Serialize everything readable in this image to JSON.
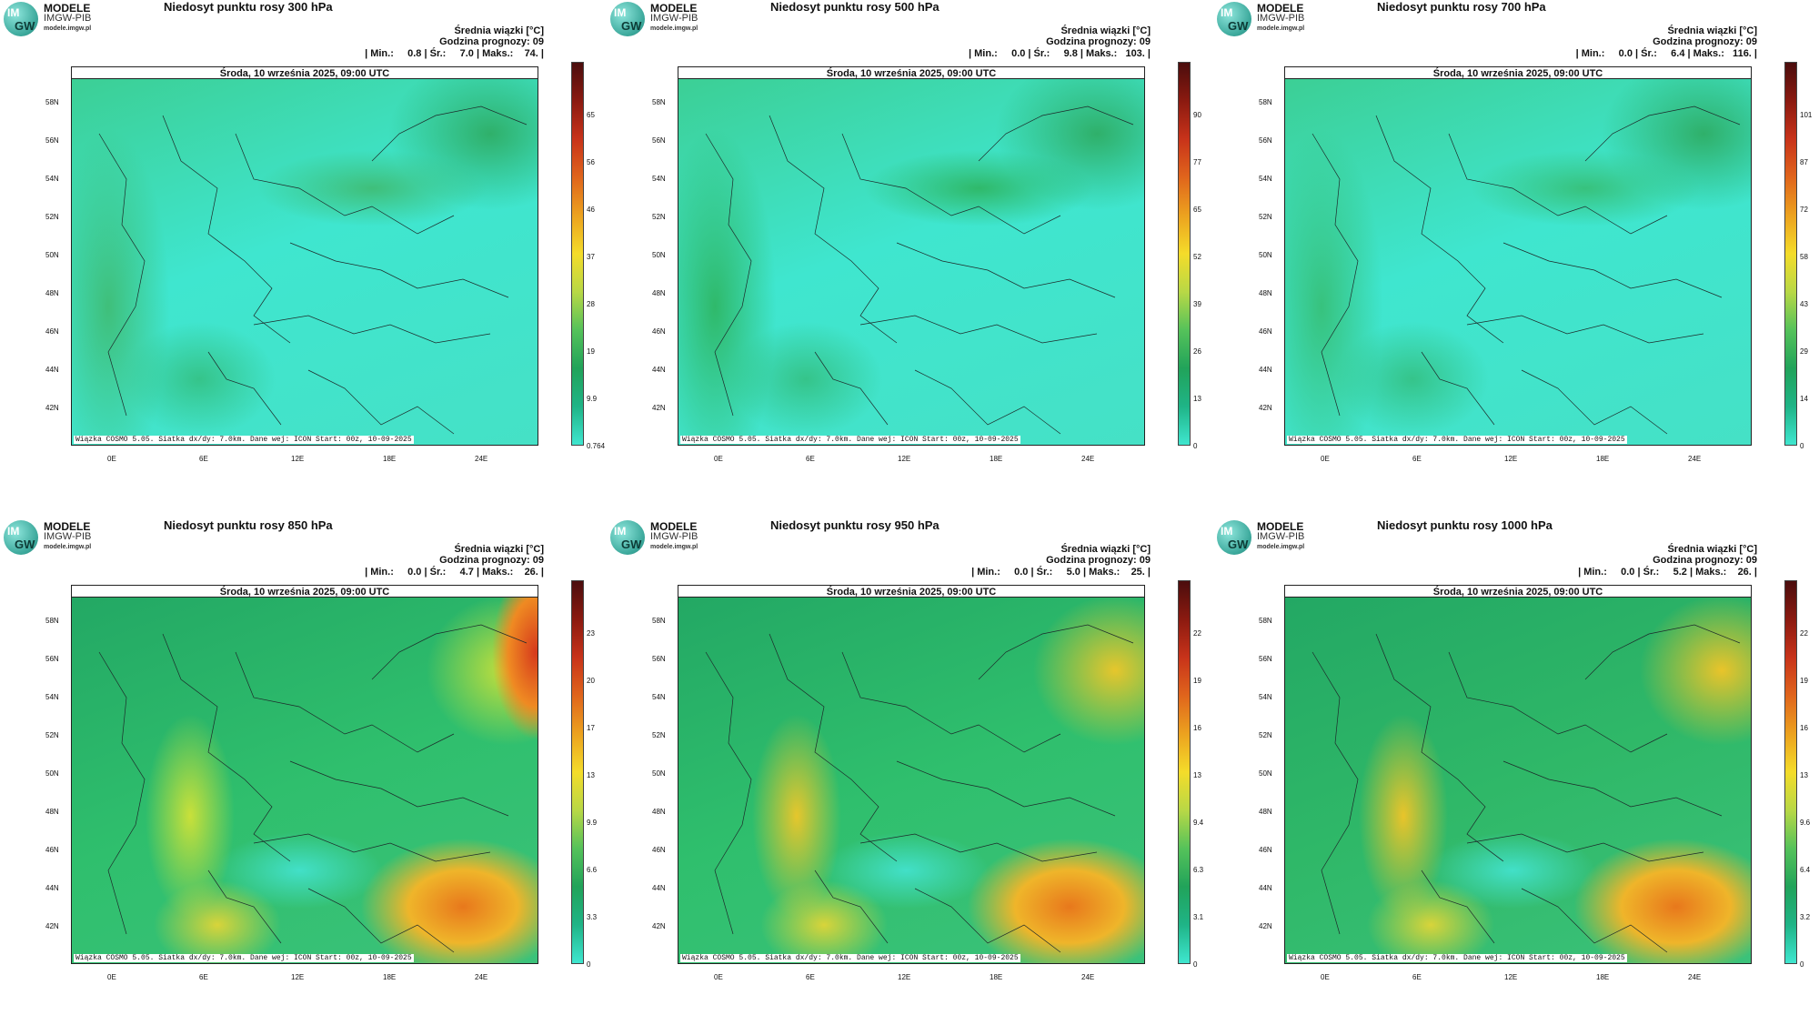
{
  "logo": {
    "line1": "MODELE",
    "line2": "IMGW-PIB",
    "line3": "modele.imgw.pl",
    "badge_top": "IM",
    "badge_bottom": "GW"
  },
  "common": {
    "meta_line1": "Średnia wiązki [°C]",
    "meta_line2": "Godzina prognozy: 09",
    "date": "Środa, 10 września 2025, 09:00 UTC",
    "footer": "Wiązka COSMO 5.05. Siatka dx/dy: 7.0km. Dane wej: ICON Start: 00z, 10-09-2025",
    "lat_labels": [
      "58N",
      "56N",
      "54N",
      "52N",
      "50N",
      "48N",
      "46N",
      "44N",
      "42N"
    ],
    "lon_labels": [
      "0E",
      "6E",
      "12E",
      "18E",
      "24E"
    ]
  },
  "panels": [
    {
      "title": "Niedosyt punktu rosy 300 hPa",
      "stats": "| Min.:     0.8 | Śr.:     7.0 | Maks.:    74. |",
      "ticks": [
        "65",
        "56",
        "46",
        "37",
        "28",
        "19",
        "9.9",
        "0.764"
      ],
      "palette": "upper",
      "base": "#3fe6cf",
      "accent": "#3fbf7a"
    },
    {
      "title": "Niedosyt punktu rosy 500 hPa",
      "stats": "| Min.:     0.0 | Śr.:     9.8 | Maks.:   103. |",
      "ticks": [
        "90",
        "77",
        "65",
        "52",
        "39",
        "26",
        "13",
        "0"
      ],
      "palette": "upper",
      "base": "#3fe6cf",
      "accent": "#2fb96a"
    },
    {
      "title": "Niedosyt punktu rosy 700 hPa",
      "stats": "| Min.:     0.0 | Śr.:     6.4 | Maks.:   116. |",
      "ticks": [
        "101",
        "87",
        "72",
        "58",
        "43",
        "29",
        "14",
        "0"
      ],
      "palette": "upper",
      "base": "#3fe6cf",
      "accent": "#37c27d"
    },
    {
      "title": "Niedosyt punktu rosy 850 hPa",
      "stats": "| Min.:     0.0 | Śr.:     4.7 | Maks.:    26. |",
      "ticks": [
        "23",
        "20",
        "17",
        "13",
        "9.9",
        "6.6",
        "3.3",
        "0"
      ],
      "palette": "lower",
      "base": "#2fbf6d",
      "accent": "#c9e03a"
    },
    {
      "title": "Niedosyt punktu rosy 950 hPa",
      "stats": "| Min.:     0.0 | Śr.:     5.0 | Maks.:    25. |",
      "ticks": [
        "22",
        "19",
        "16",
        "13",
        "9.4",
        "6.3",
        "3.1",
        "0"
      ],
      "palette": "lower",
      "base": "#2fbf6d",
      "accent": "#e6c62c"
    },
    {
      "title": "Niedosyt punktu rosy 1000 hPa",
      "stats": "| Min.:     0.0 | Śr.:     5.2 | Maks.:    26. |",
      "ticks": [
        "22",
        "19",
        "16",
        "13",
        "9.6",
        "6.4",
        "3.2",
        "0"
      ],
      "palette": "lower",
      "base": "#2fb868",
      "accent": "#e9c42a"
    }
  ],
  "colors": {
    "colorbar": [
      "#4b0d0d",
      "#8b1a10",
      "#c8331a",
      "#e0651c",
      "#eca21f",
      "#f4dc2a",
      "#b8d846",
      "#55c25a",
      "#21a35a",
      "#1fb487",
      "#3fe6cf"
    ]
  }
}
